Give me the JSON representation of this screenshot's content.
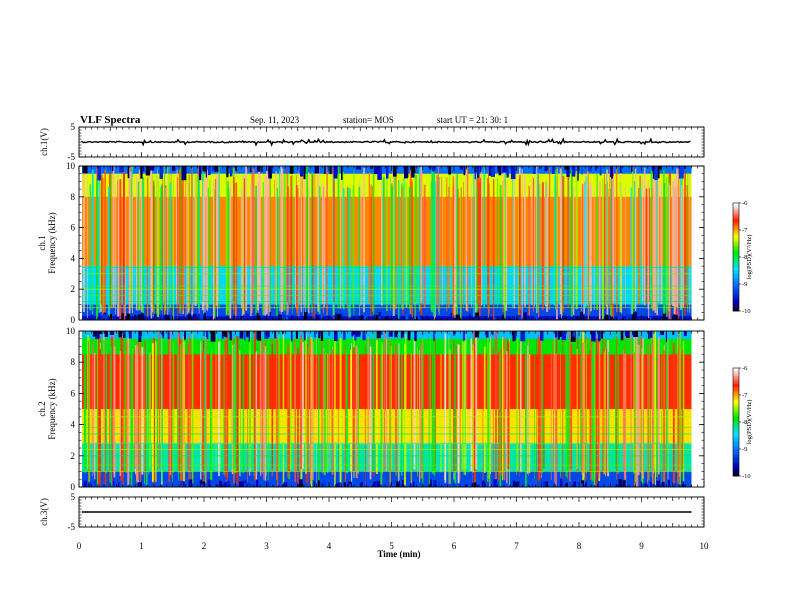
{
  "header": {
    "title": "VLF Spectra",
    "date": "Sep. 11, 2023",
    "station": "station= MOS",
    "start": "start  UT =   21: 30: 1"
  },
  "chart_data": [
    {
      "type": "line",
      "name": "ch1-waveform",
      "ylabel": "ch.1(V)",
      "ylim": [
        -5,
        5
      ],
      "yticks": [
        "5",
        "-5"
      ],
      "baseline": 0
    },
    {
      "type": "heatmap",
      "name": "ch1-spectrogram",
      "ylabel_top": "ch.1",
      "ylabel": "Frequency (kHz)",
      "ylim": [
        0,
        10
      ],
      "yticks": [
        "0",
        "2",
        "4",
        "6",
        "8",
        "10"
      ],
      "xlim": [
        0,
        10
      ],
      "data_end_min": 9.8,
      "colorbar": {
        "range": [
          -10,
          -6
        ],
        "ticks": [
          "-6",
          "-7",
          "-8",
          "-9",
          "-10"
        ],
        "label": "log(PSD)(V²/Hz)"
      }
    },
    {
      "type": "heatmap",
      "name": "ch2-spectrogram",
      "ylabel_top": "ch.2",
      "ylabel": "Frequency (kHz)",
      "ylim": [
        0,
        10
      ],
      "yticks": [
        "0",
        "2",
        "4",
        "6",
        "8",
        "10"
      ],
      "xlim": [
        0,
        10
      ],
      "data_end_min": 9.8,
      "colorbar": {
        "range": [
          -10,
          -6
        ],
        "ticks": [
          "-6",
          "-7",
          "-8",
          "-9",
          "-10"
        ],
        "label": "log(PSD)(V²/Hz)"
      }
    },
    {
      "type": "line",
      "name": "ch3-waveform",
      "ylabel": "ch.3(V)",
      "ylim": [
        -5,
        5
      ],
      "yticks": [
        "5",
        "-5"
      ],
      "baseline": 0
    }
  ],
  "xaxis": {
    "label": "Time (min)",
    "ticks": [
      "0",
      "1",
      "2",
      "3",
      "4",
      "5",
      "6",
      "7",
      "8",
      "9",
      "10"
    ],
    "range": [
      0,
      10
    ]
  },
  "colors": {
    "spectrum": [
      "#000000",
      "#0000cc",
      "#0077ff",
      "#00ffff",
      "#00ff00",
      "#ffff00",
      "#ff0000",
      "#ffffff"
    ]
  }
}
